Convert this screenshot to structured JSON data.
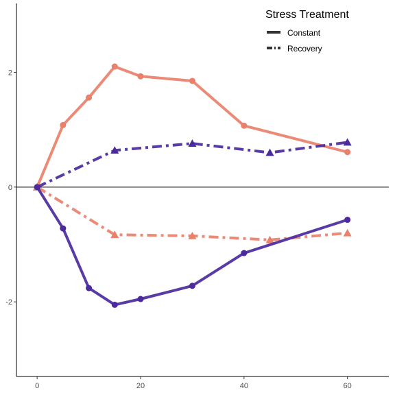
{
  "chart_data": {
    "type": "line",
    "title": "",
    "xlabel": "",
    "ylabel": "",
    "xlim": [
      -4,
      68
    ],
    "ylim": [
      -3.3,
      3.2
    ],
    "x_ticks": [
      0,
      20,
      40,
      60
    ],
    "y_ticks": [
      -2,
      0,
      2
    ],
    "x_tick_labels": [
      "0",
      "20",
      "40",
      "60"
    ],
    "y_tick_labels": [
      "-2",
      "0",
      "2"
    ],
    "zero_line": true,
    "grid": false,
    "legend": {
      "title": "Stress Treatment",
      "position": "top-right",
      "entries": [
        {
          "label": "Constant",
          "dash": "solid"
        },
        {
          "label": "Recovery",
          "dash": "dashdot"
        }
      ]
    },
    "colors": {
      "salmon": "#e9806a",
      "purple": "#4b2a9e"
    },
    "series": [
      {
        "color": "#e9806a",
        "treatment": "Constant",
        "marker": "circle",
        "x": [
          0,
          5,
          10,
          15,
          20,
          30,
          40,
          60
        ],
        "y": [
          0,
          1.08,
          1.56,
          2.1,
          1.93,
          1.85,
          1.07,
          0.61
        ]
      },
      {
        "color": "#4b2a9e",
        "treatment": "Recovery",
        "marker": "triangle",
        "x": [
          0,
          15,
          30,
          45,
          60
        ],
        "y": [
          0,
          0.64,
          0.76,
          0.6,
          0.78
        ]
      },
      {
        "color": "#e9806a",
        "treatment": "Recovery",
        "marker": "triangle",
        "x": [
          0,
          15,
          30,
          45,
          60
        ],
        "y": [
          0,
          -0.83,
          -0.85,
          -0.92,
          -0.8
        ]
      },
      {
        "color": "#4b2a9e",
        "treatment": "Constant",
        "marker": "circle",
        "x": [
          0,
          5,
          10,
          15,
          20,
          30,
          40,
          60
        ],
        "y": [
          0,
          -0.72,
          -1.76,
          -2.05,
          -1.95,
          -1.72,
          -1.15,
          -0.57
        ]
      }
    ]
  }
}
